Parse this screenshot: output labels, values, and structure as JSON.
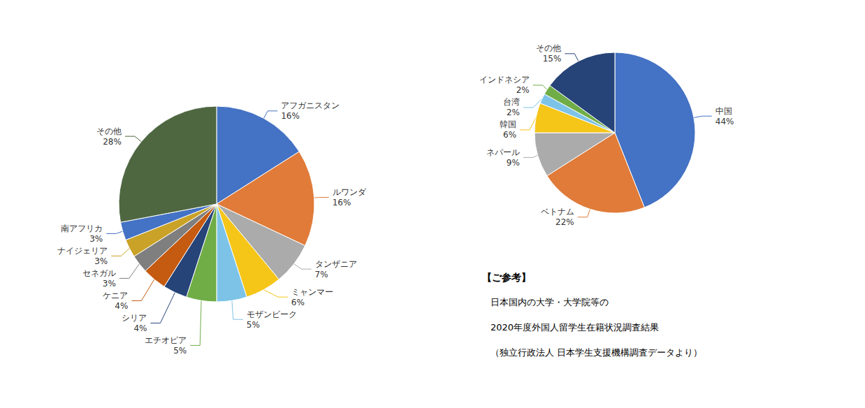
{
  "chart_data": [
    {
      "type": "pie",
      "categories": [
        "アフガニスタン",
        "ルワンダ",
        "タンザニア",
        "ミャンマー",
        "モザンビーク",
        "エチオピア",
        "シリア",
        "ケニア",
        "セネガル",
        "ナイジェリア",
        "南アフリカ",
        "その他"
      ],
      "values": [
        16,
        16,
        7,
        6,
        5,
        5,
        4,
        4,
        3,
        3,
        3,
        28
      ],
      "value_labels": [
        "16%",
        "16%",
        "7%",
        "6%",
        "5%",
        "5%",
        "4%",
        "4%",
        "3%",
        "3%",
        "3%",
        "28%"
      ],
      "colors": [
        "#4472C4",
        "#E07B39",
        "#ABABAB",
        "#F5C518",
        "#7DC3E8",
        "#70AD47",
        "#264478",
        "#C55A11",
        "#7F7F7F",
        "#C9A227",
        "#4472C4",
        "#4E6741"
      ],
      "data_labels": true
    },
    {
      "type": "pie",
      "categories": [
        "中国",
        "ベトナム",
        "ネパール",
        "韓国",
        "台湾",
        "インドネシア",
        "その他"
      ],
      "values": [
        44,
        22,
        9,
        6,
        2,
        2,
        15
      ],
      "value_labels": [
        "44%",
        "22%",
        "9%",
        "6%",
        "2%",
        "2%",
        "15%"
      ],
      "colors": [
        "#4472C4",
        "#E07B39",
        "#ABABAB",
        "#F5C518",
        "#7DC3E8",
        "#70AD47",
        "#264478"
      ],
      "data_labels": true,
      "annotations": [
        "【ご参考】",
        "日本国内の大学・大学院等の",
        "2020年度外国人留学生在籍状況調査結果",
        "（独立行政法人 日本学生支援機構調査データより）"
      ]
    }
  ]
}
